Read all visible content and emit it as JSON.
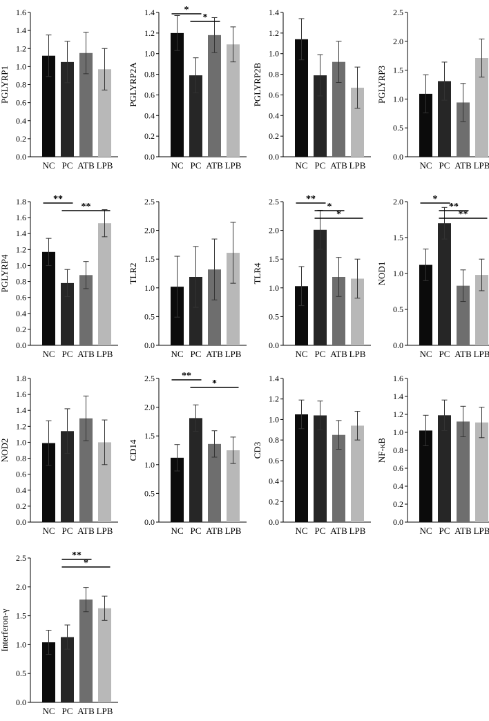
{
  "categories": [
    "NC",
    "PC",
    "ATB",
    "LPB"
  ],
  "colors": {
    "NC": "#0b0b0b",
    "PC": "#262626",
    "ATB": "#6e6e6e",
    "LPB": "#b8b8b8",
    "axis": "#000000",
    "error": "#333333"
  },
  "chart_data": [
    {
      "type": "bar",
      "title": "",
      "ylabel": "PGLYRP1",
      "categories": [
        "NC",
        "PC",
        "ATB",
        "LPB"
      ],
      "values": [
        1.12,
        1.05,
        1.15,
        0.97
      ],
      "errors": [
        0.23,
        0.23,
        0.23,
        0.23
      ],
      "ylim": [
        0,
        1.6
      ],
      "yticks": [
        "0.0",
        "0.2",
        "0.4",
        "0.6",
        "0.8",
        "1.0",
        "1.2",
        "1.4",
        "1.6"
      ],
      "significance": []
    },
    {
      "type": "bar",
      "title": "",
      "ylabel": "PGLYRP2A",
      "categories": [
        "NC",
        "PC",
        "ATB",
        "LPB"
      ],
      "values": [
        1.2,
        0.79,
        1.18,
        1.09
      ],
      "errors": [
        0.17,
        0.17,
        0.17,
        0.17
      ],
      "ylim": [
        0,
        1.4
      ],
      "yticks": [
        "0.0",
        "0.2",
        "0.4",
        "0.6",
        "0.8",
        "1.0",
        "1.2",
        "1.4"
      ],
      "significance": [
        {
          "from": 0,
          "to": 1,
          "label": "*"
        },
        {
          "from": 1,
          "to": 2,
          "label": "*"
        }
      ]
    },
    {
      "type": "bar",
      "title": "",
      "ylabel": "PGLYRP2B",
      "categories": [
        "NC",
        "PC",
        "ATB",
        "LPB"
      ],
      "values": [
        1.14,
        0.79,
        0.92,
        0.67
      ],
      "errors": [
        0.2,
        0.2,
        0.2,
        0.2
      ],
      "ylim": [
        0,
        1.4
      ],
      "yticks": [
        "0.0",
        "0.2",
        "0.4",
        "0.6",
        "0.8",
        "1.0",
        "1.2",
        "1.4"
      ],
      "significance": []
    },
    {
      "type": "bar",
      "title": "",
      "ylabel": "PGLYRP3",
      "categories": [
        "NC",
        "PC",
        "ATB",
        "LPB"
      ],
      "values": [
        1.09,
        1.31,
        0.94,
        1.71
      ],
      "errors": [
        0.33,
        0.33,
        0.33,
        0.33
      ],
      "ylim": [
        0,
        2.5
      ],
      "yticks": [
        "0.0",
        "0.5",
        "1.0",
        "1.5",
        "2.0",
        "2.5"
      ],
      "significance": []
    },
    {
      "type": "bar",
      "title": "",
      "ylabel": "PGLYRP4",
      "categories": [
        "NC",
        "PC",
        "ATB",
        "LPB"
      ],
      "values": [
        1.17,
        0.78,
        0.88,
        1.53
      ],
      "errors": [
        0.17,
        0.17,
        0.17,
        0.17
      ],
      "ylim": [
        0,
        1.8
      ],
      "yticks": [
        "0.0",
        "0.2",
        "0.4",
        "0.6",
        "0.8",
        "1.0",
        "1.2",
        "1.4",
        "1.6",
        "1.8"
      ],
      "significance": [
        {
          "from": 0,
          "to": 1,
          "label": "**"
        },
        {
          "from": 1,
          "to": 3,
          "label": "**"
        }
      ]
    },
    {
      "type": "bar",
      "title": "",
      "ylabel": "TLR2",
      "categories": [
        "NC",
        "PC",
        "ATB",
        "LPB"
      ],
      "values": [
        1.02,
        1.19,
        1.32,
        1.61
      ],
      "errors": [
        0.53,
        0.53,
        0.53,
        0.53
      ],
      "ylim": [
        0,
        2.5
      ],
      "yticks": [
        "0.0",
        "0.5",
        "1.0",
        "1.5",
        "2.0",
        "2.5"
      ],
      "significance": []
    },
    {
      "type": "bar",
      "title": "",
      "ylabel": "TLR4",
      "categories": [
        "NC",
        "PC",
        "ATB",
        "LPB"
      ],
      "values": [
        1.03,
        2.01,
        1.19,
        1.16
      ],
      "errors": [
        0.34,
        0.34,
        0.34,
        0.34
      ],
      "ylim": [
        0,
        2.5
      ],
      "yticks": [
        "0.0",
        "0.5",
        "1.0",
        "1.5",
        "2.0",
        "2.5"
      ],
      "significance": [
        {
          "from": 0,
          "to": 1,
          "label": "**"
        },
        {
          "from": 1,
          "to": 2,
          "label": "*"
        },
        {
          "from": 1,
          "to": 3,
          "label": "*"
        }
      ]
    },
    {
      "type": "bar",
      "title": "",
      "ylabel": "NOD1",
      "categories": [
        "NC",
        "PC",
        "ATB",
        "LPB"
      ],
      "values": [
        1.12,
        1.7,
        0.83,
        0.98
      ],
      "errors": [
        0.22,
        0.22,
        0.22,
        0.22
      ],
      "ylim": [
        0,
        2.0
      ],
      "yticks": [
        "0.0",
        "0.5",
        "1.0",
        "1.5",
        "2.0"
      ],
      "significance": [
        {
          "from": 0,
          "to": 1,
          "label": "*"
        },
        {
          "from": 1,
          "to": 2,
          "label": "**"
        },
        {
          "from": 1,
          "to": 3,
          "label": "**"
        }
      ]
    },
    {
      "type": "bar",
      "title": "",
      "ylabel": "NOD2",
      "categories": [
        "NC",
        "PC",
        "ATB",
        "LPB"
      ],
      "values": [
        0.99,
        1.14,
        1.3,
        1.0
      ],
      "errors": [
        0.28,
        0.28,
        0.28,
        0.28
      ],
      "ylim": [
        0,
        1.8
      ],
      "yticks": [
        "0.0",
        "0.2",
        "0.4",
        "0.6",
        "0.8",
        "1.0",
        "1.2",
        "1.4",
        "1.6",
        "1.8"
      ],
      "significance": []
    },
    {
      "type": "bar",
      "title": "",
      "ylabel": "CD14",
      "categories": [
        "NC",
        "PC",
        "ATB",
        "LPB"
      ],
      "values": [
        1.12,
        1.81,
        1.36,
        1.25
      ],
      "errors": [
        0.23,
        0.23,
        0.23,
        0.23
      ],
      "ylim": [
        0,
        2.5
      ],
      "yticks": [
        "0.0",
        "0.5",
        "1.0",
        "1.5",
        "2.0",
        "2.5"
      ],
      "significance": [
        {
          "from": 0,
          "to": 1,
          "label": "**"
        },
        {
          "from": 1,
          "to": 3,
          "label": "*"
        }
      ]
    },
    {
      "type": "bar",
      "title": "",
      "ylabel": "CD3",
      "categories": [
        "NC",
        "PC",
        "ATB",
        "LPB"
      ],
      "values": [
        1.05,
        1.04,
        0.85,
        0.94
      ],
      "errors": [
        0.14,
        0.14,
        0.14,
        0.14
      ],
      "ylim": [
        0,
        1.4
      ],
      "yticks": [
        "0.0",
        "0.2",
        "0.4",
        "0.6",
        "0.8",
        "1.0",
        "1.2",
        "1.4"
      ],
      "significance": []
    },
    {
      "type": "bar",
      "title": "",
      "ylabel": "NF-κB",
      "categories": [
        "NC",
        "PC",
        "ATB",
        "LPB"
      ],
      "values": [
        1.02,
        1.19,
        1.12,
        1.11
      ],
      "errors": [
        0.17,
        0.17,
        0.17,
        0.17
      ],
      "ylim": [
        0,
        1.6
      ],
      "yticks": [
        "0.0",
        "0.2",
        "0.4",
        "0.6",
        "0.8",
        "1.0",
        "1.2",
        "1.4",
        "1.6"
      ],
      "significance": []
    },
    {
      "type": "bar",
      "title": "",
      "ylabel": "Interferon-γ",
      "categories": [
        "NC",
        "PC",
        "ATB",
        "LPB"
      ],
      "values": [
        1.04,
        1.13,
        1.78,
        1.63
      ],
      "errors": [
        0.21,
        0.21,
        0.21,
        0.21
      ],
      "ylim": [
        0,
        2.5
      ],
      "yticks": [
        "0.0",
        "0.5",
        "1.0",
        "1.5",
        "2.0",
        "2.5"
      ],
      "significance": [
        {
          "from": 1,
          "to": 2,
          "label": "**"
        },
        {
          "from": 1,
          "to": 3,
          "label": "*"
        }
      ]
    }
  ]
}
